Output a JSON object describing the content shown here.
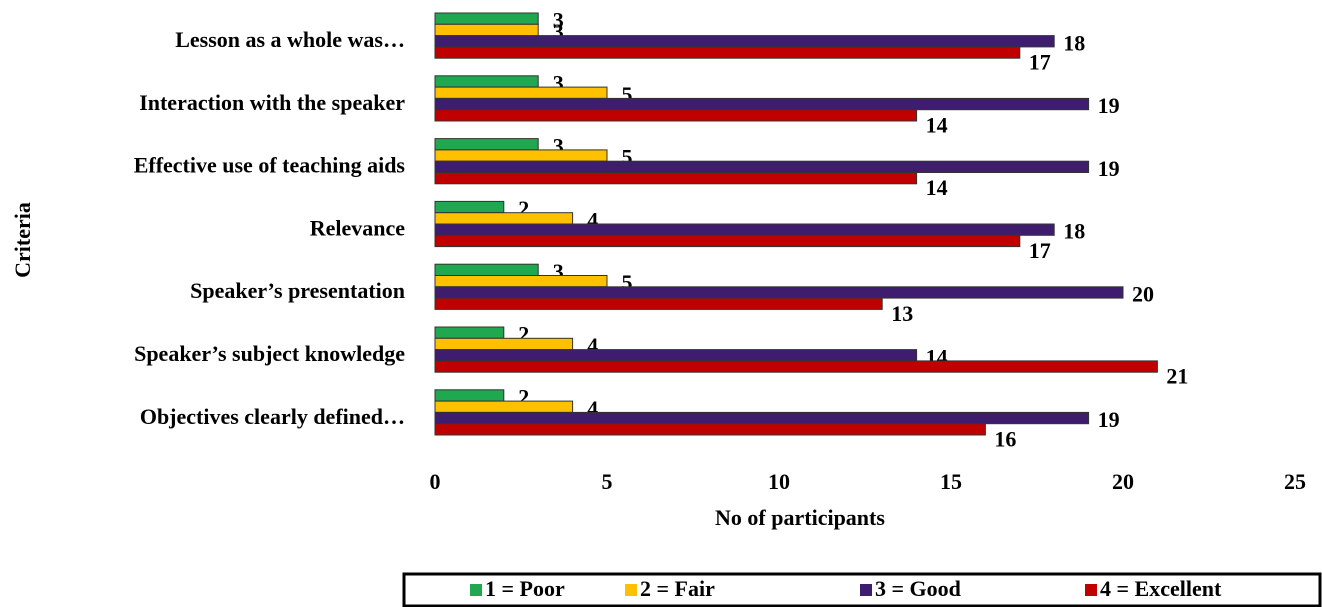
{
  "chart_data": {
    "type": "bar",
    "orientation": "horizontal",
    "x_label": "No of participants",
    "y_label": "Criteria",
    "categories": [
      "Lesson as a whole was…",
      "Interaction with the speaker",
      "Effective use of teaching aids",
      "Relevance",
      "Speaker’s presentation",
      "Speaker’s subject knowledge",
      "Objectives clearly defined…"
    ],
    "series": [
      {
        "name": "1 = Poor",
        "color": "#1fa84f",
        "values": [
          3,
          3,
          3,
          2,
          3,
          2,
          2
        ]
      },
      {
        "name": "2 = Fair",
        "color": "#ffc000",
        "values": [
          3,
          5,
          5,
          4,
          5,
          4,
          4
        ]
      },
      {
        "name": "3 = Good",
        "color": "#3f1d6e",
        "values": [
          18,
          19,
          19,
          18,
          20,
          14,
          19
        ]
      },
      {
        "name": "4 = Excellent",
        "color": "#c00000",
        "values": [
          17,
          14,
          14,
          17,
          13,
          21,
          16
        ]
      }
    ],
    "xlim": [
      0,
      25
    ],
    "xticks": [
      0,
      5,
      10,
      15,
      20,
      25
    ],
    "legend": "bottom"
  }
}
